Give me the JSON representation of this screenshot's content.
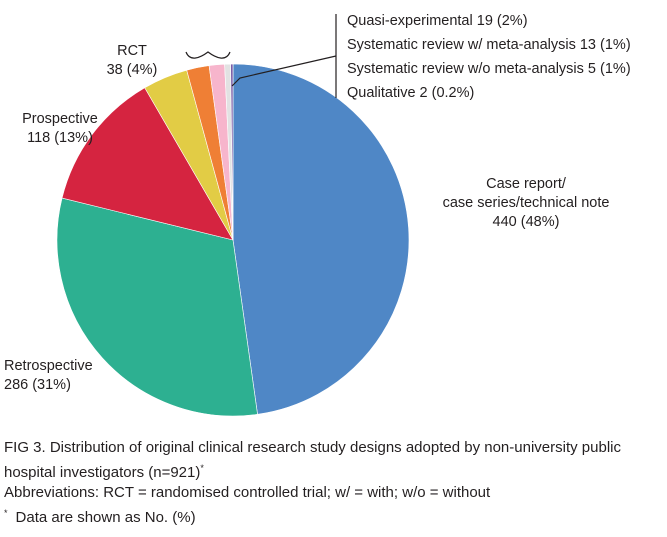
{
  "chart_data": {
    "type": "pie",
    "total": 921,
    "slices": [
      {
        "label_lines": [
          "Case report/",
          "case series/technical note",
          "440 (48%)"
        ],
        "value": 440,
        "color": "#4f87c6"
      },
      {
        "label_lines": [
          "Retrospective",
          "286 (31%)"
        ],
        "value": 286,
        "color": "#2db091"
      },
      {
        "label_lines": [
          "Prospective",
          "118 (13%)"
        ],
        "value": 118,
        "color": "#d52440"
      },
      {
        "label_lines": [
          "RCT",
          "38 (4%)"
        ],
        "value": 38,
        "color": "#e2cc45"
      },
      {
        "label_lines": [
          "Quasi-experimental 19 (2%)"
        ],
        "value": 19,
        "color": "#ef7f35"
      },
      {
        "label_lines": [
          "Systematic review w/ meta-analysis 13 (1%)"
        ],
        "value": 13,
        "color": "#f7b5cc"
      },
      {
        "label_lines": [
          "Systematic review w/o meta-analysis 5 (1%)"
        ],
        "value": 5,
        "color": "#e2e2e2"
      },
      {
        "label_lines": [
          "Qualitative 2 (0.2%)"
        ],
        "value": 2,
        "color": "#7a5fa8"
      }
    ],
    "legend": null
  },
  "caption": {
    "title": "FIG 3. Distribution of original clinical research study designs adopted by non-university public hospital investigators (n=921)",
    "title_mark": "*",
    "abbreviations": "Abbreviations: RCT = randomised controlled trial; w/ = with; w/o = without",
    "note_mark": "*",
    "note": "Data are shown as No. (%)"
  }
}
